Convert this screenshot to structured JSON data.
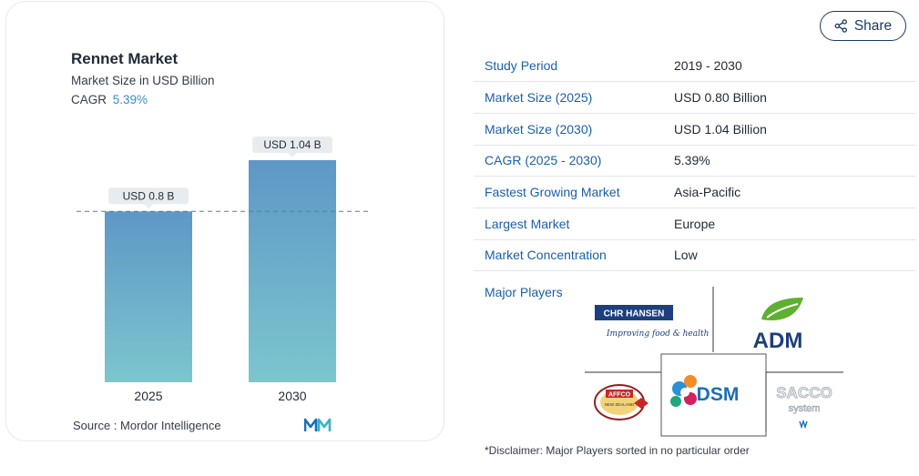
{
  "chart_data": {
    "type": "bar",
    "title": "Rennet Market",
    "subtitle": "Market Size in USD Billion",
    "cagr_label": "CAGR",
    "cagr_value": "5.39%",
    "categories": [
      "2025",
      "2030"
    ],
    "values": [
      0.8,
      1.04
    ],
    "data_labels": [
      "USD 0.8 B",
      "USD 1.04 B"
    ],
    "ylim": [
      0,
      1.04
    ],
    "reference_line": 0.8,
    "bar_colors": {
      "top": "#5e97c6",
      "bottom": "#7cc6ce"
    },
    "source": "Source :  Mordor Intelligence"
  },
  "share": {
    "label": "Share",
    "icon": "share-icon"
  },
  "info_rows": [
    {
      "key": "Study Period",
      "value": "2019 - 2030"
    },
    {
      "key": "Market Size (2025)",
      "value": "USD 0.80 Billion"
    },
    {
      "key": "Market Size (2030)",
      "value": "USD 1.04 Billion"
    },
    {
      "key": "CAGR (2025 - 2030)",
      "value": "5.39%"
    },
    {
      "key": "Fastest Growing Market",
      "value": "Asia-Pacific"
    },
    {
      "key": "Largest Market",
      "value": "Europe"
    },
    {
      "key": "Market Concentration",
      "value": "Low"
    }
  ],
  "major_players": {
    "label": "Major Players",
    "logos": [
      {
        "name": "CHR HANSEN",
        "tagline": "Improving food & health"
      },
      {
        "name": "ADM"
      },
      {
        "name": "AFFCO",
        "tagline": "NEW ZEALAND"
      },
      {
        "name": "DSM"
      },
      {
        "name": "SACCO",
        "tagline": "system"
      }
    ]
  },
  "disclaimer": "*Disclaimer: Major Players sorted in no particular order",
  "colors": {
    "accent": "#1b5fa8",
    "brand_navy": "#1a3a66",
    "cagr": "#3b8ec0"
  }
}
